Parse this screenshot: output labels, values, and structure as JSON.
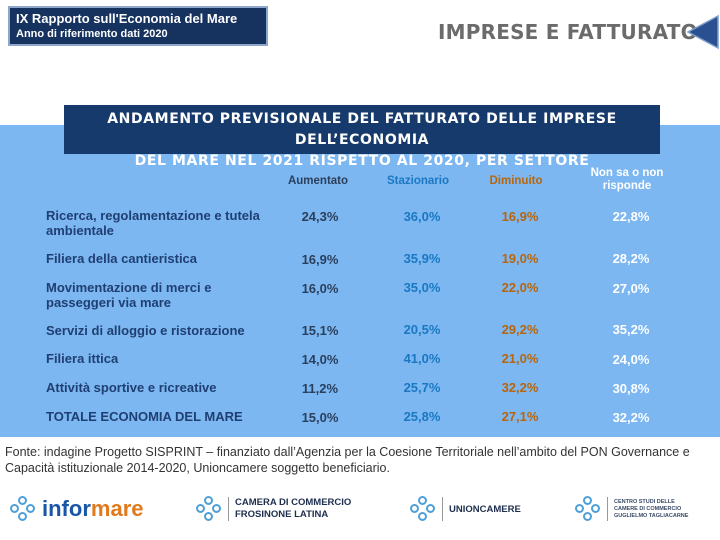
{
  "header": {
    "title": "IX Rapporto sull'Economia del Mare",
    "subtitle": "Anno di riferimento dati 2020"
  },
  "section_title": "IMPRESE E FATTURATO",
  "nav_icon": "left-triangle-arrow",
  "table": {
    "title_line1": "ANDAMENTO PREVISIONALE DEL FATTURATO DELLE IMPRESE DELL’ECONOMIA",
    "title_line2": "DEL MARE NEL 2021 RISPETTO AL 2020, PER SETTORE",
    "columns": [
      "Aumentato",
      "Stazionario",
      "Diminuito",
      "Non sa o non risponde"
    ],
    "rows": [
      {
        "label": "Ricerca, regolamentazione e tutela ambientale",
        "values": [
          "24,3%",
          "36,0%",
          "16,9%",
          "22,8%"
        ]
      },
      {
        "label": "Filiera della cantieristica",
        "values": [
          "16,9%",
          "35,9%",
          "19,0%",
          "28,2%"
        ]
      },
      {
        "label": "Movimentazione di merci e passeggeri via mare",
        "values": [
          "16,0%",
          "35,0%",
          "22,0%",
          "27,0%"
        ]
      },
      {
        "label": "Servizi di alloggio e ristorazione",
        "values": [
          "15,1%",
          "20,5%",
          "29,2%",
          "35,2%"
        ]
      },
      {
        "label": "Filiera ittica",
        "values": [
          "14,0%",
          "41,0%",
          "21,0%",
          "24,0%"
        ]
      },
      {
        "label": "Attività sportive e ricreative",
        "values": [
          "11,2%",
          "25,7%",
          "32,2%",
          "30,8%"
        ]
      },
      {
        "label": "TOTALE ECONOMIA DEL MARE",
        "values": [
          "15,0%",
          "25,8%",
          "27,1%",
          "32,2%"
        ]
      }
    ]
  },
  "source": "Fonte: indagine Progetto SISPRINT – finanziato dall’Agenzia per la Coesione Territoriale nell’ambito del PON Governance e Capacità istituzionale 2014-2020, Unioncamere soggetto beneficiario.",
  "footer": {
    "informare_word_a": "infor",
    "informare_word_b": "mare",
    "camera_line1": "CAMERA DI COMMERCIO",
    "camera_line2": "FROSINONE LATINA",
    "unioncamere": "UNIONCAMERE",
    "tagliacarne_line1": "CENTRO STUDI DELLE",
    "tagliacarne_line2": "CAMERE DI COMMERCIO",
    "tagliacarne_line3": "GUGLIELMO TAGLIACARNE"
  },
  "colors": {
    "header_bg": "#16325f",
    "panel_bg": "#7cb7f1",
    "title_bg": "#163a6b",
    "aumentato": "#2a3f5c",
    "stazionario": "#1a78c2",
    "diminuito": "#b8650b",
    "non_sa": "#ffffff"
  }
}
